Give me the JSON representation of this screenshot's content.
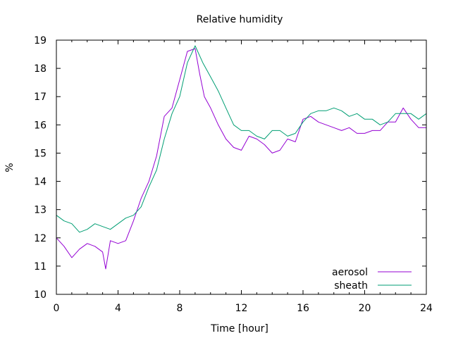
{
  "chart_data": {
    "type": "line",
    "title": "Relative humidity",
    "xlabel": "Time [hour]",
    "ylabel": "%",
    "xlim": [
      0,
      24
    ],
    "ylim": [
      10,
      19
    ],
    "xticks": [
      0,
      4,
      8,
      12,
      16,
      20,
      24
    ],
    "yticks": [
      10,
      11,
      12,
      13,
      14,
      15,
      16,
      17,
      18,
      19
    ],
    "grid": false,
    "legend_position": "bottom-right",
    "series": [
      {
        "name": "aerosol",
        "color": "#9400d3",
        "x": [
          0,
          0.5,
          1,
          1.5,
          2,
          2.5,
          3,
          3.2,
          3.5,
          4,
          4.5,
          5,
          5.5,
          6,
          6.5,
          7,
          7.5,
          8,
          8.5,
          9,
          9.3,
          9.6,
          10,
          10.5,
          11,
          11.5,
          12,
          12.5,
          13,
          13.5,
          14,
          14.5,
          15,
          15.5,
          16,
          16.5,
          17,
          17.5,
          18,
          18.5,
          19,
          19.5,
          20,
          20.5,
          21,
          21.5,
          22,
          22.5,
          23,
          23.5,
          24
        ],
        "y": [
          12.0,
          11.7,
          11.3,
          11.6,
          11.8,
          11.7,
          11.5,
          10.9,
          11.9,
          11.8,
          11.9,
          12.6,
          13.4,
          14.0,
          14.9,
          16.3,
          16.6,
          17.6,
          18.6,
          18.7,
          17.8,
          17.0,
          16.6,
          16.0,
          15.5,
          15.2,
          15.1,
          15.6,
          15.5,
          15.3,
          15.0,
          15.1,
          15.5,
          15.4,
          16.2,
          16.3,
          16.1,
          16.0,
          15.9,
          15.8,
          15.9,
          15.7,
          15.7,
          15.8,
          15.8,
          16.1,
          16.1,
          16.6,
          16.2,
          15.9,
          15.9
        ]
      },
      {
        "name": "sheath",
        "color": "#009e73",
        "x": [
          0,
          0.5,
          1,
          1.5,
          2,
          2.5,
          3,
          3.5,
          4,
          4.5,
          5,
          5.5,
          6,
          6.5,
          7,
          7.5,
          8,
          8.5,
          9,
          9.5,
          10,
          10.5,
          11,
          11.5,
          12,
          12.5,
          13,
          13.5,
          14,
          14.5,
          15,
          15.5,
          16,
          16.5,
          17,
          17.5,
          18,
          18.5,
          19,
          19.5,
          20,
          20.5,
          21,
          21.5,
          22,
          22.5,
          23,
          23.5,
          24
        ],
        "y": [
          12.8,
          12.6,
          12.5,
          12.2,
          12.3,
          12.5,
          12.4,
          12.3,
          12.5,
          12.7,
          12.8,
          13.1,
          13.8,
          14.4,
          15.5,
          16.4,
          17.0,
          18.2,
          18.8,
          18.2,
          17.7,
          17.2,
          16.6,
          16.0,
          15.8,
          15.8,
          15.6,
          15.5,
          15.8,
          15.8,
          15.6,
          15.7,
          16.1,
          16.4,
          16.5,
          16.5,
          16.6,
          16.5,
          16.3,
          16.4,
          16.2,
          16.2,
          16.0,
          16.1,
          16.4,
          16.4,
          16.4,
          16.2,
          16.4
        ]
      }
    ]
  }
}
